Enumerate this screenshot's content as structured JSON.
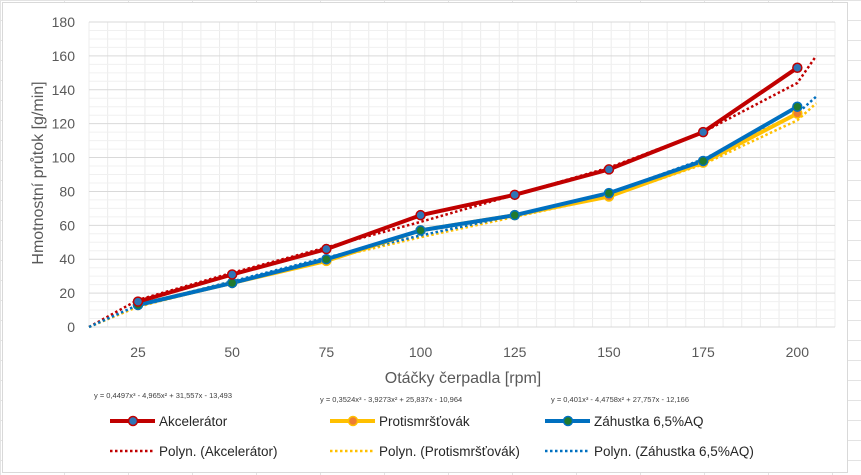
{
  "chart_data": {
    "type": "line",
    "x": [
      25,
      50,
      75,
      100,
      125,
      150,
      175,
      200
    ],
    "xlabel": "Otáčky čerpadla [rpm]",
    "ylabel": "Hmotnostní průtok [g/min]",
    "xlim": [
      12,
      210
    ],
    "ylim": [
      0,
      180
    ],
    "yticks": [
      0,
      20,
      40,
      60,
      80,
      100,
      120,
      140,
      160,
      180
    ],
    "grid": true,
    "legend_position": "bottom",
    "series": [
      {
        "name": "Akcelerátor",
        "color": "#C00000",
        "marker_color": "#2E75B6",
        "values": [
          15,
          31,
          46,
          66,
          78,
          93,
          115,
          153
        ]
      },
      {
        "name": "Protismršťovák",
        "color": "#FFC000",
        "marker_color": "#ED7D31",
        "values": [
          13,
          26,
          39,
          57,
          66,
          77,
          97,
          126
        ]
      },
      {
        "name": "Záhustka 6,5%AQ",
        "color": "#0070C0",
        "marker_color": "#217A2E",
        "values": [
          13,
          26,
          40,
          57,
          66,
          79,
          98,
          130
        ]
      }
    ],
    "trendlines": [
      {
        "name": "Polyn. (Akcelerátor)",
        "color": "#C00000",
        "values": [
          0,
          16,
          32,
          47,
          62,
          78,
          94,
          115,
          144,
          160
        ]
      },
      {
        "name": "Polyn. (Protismršťovák)",
        "color": "#FFC000",
        "values": [
          0,
          12,
          26,
          40,
          53,
          65,
          77,
          96,
          122,
          132
        ]
      },
      {
        "name": "Polyn. (Záhustka 6,5%AQ)",
        "color": "#0070C0",
        "values": [
          0,
          13,
          27,
          41,
          54,
          66,
          79,
          99,
          126,
          136
        ]
      }
    ],
    "trend_x": [
      12,
      25,
      50,
      75,
      100,
      125,
      150,
      175,
      200,
      205
    ],
    "equations": [
      "y = 0,4497x³ - 4,965x² + 31,557x - 13,493",
      "y = 0,3524x³ - 3,9273x² + 25,837x - 10,964",
      "y = 0,401x³ - 4,4758x² + 27,757x - 12,166"
    ]
  }
}
